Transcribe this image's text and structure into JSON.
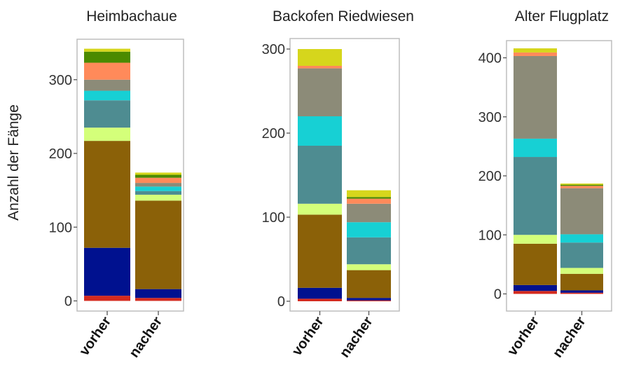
{
  "ylabel": "Anzahl der Fänge",
  "category_colors": [
    "#d42a1e",
    "#00118f",
    "#8b6108",
    "#d4ff7a",
    "#4e8c91",
    "#17d0d4",
    "#8c8b78",
    "#ff8a5a",
    "#4b8a00",
    "#d6d61c"
  ],
  "chart_data": [
    {
      "type": "bar",
      "stacked": true,
      "title": "Heimbachaue",
      "categories": [
        "vorher",
        "nacher"
      ],
      "ylim": [
        0,
        350
      ],
      "yticks": [
        0,
        100,
        200,
        300
      ],
      "grid": false,
      "series": [
        {
          "color": "#d42a1e",
          "values": [
            7,
            4
          ]
        },
        {
          "color": "#00118f",
          "values": [
            65,
            12
          ]
        },
        {
          "color": "#8b6108",
          "values": [
            145,
            120
          ]
        },
        {
          "color": "#d4ff7a",
          "values": [
            18,
            8
          ]
        },
        {
          "color": "#4e8c91",
          "values": [
            37,
            5
          ]
        },
        {
          "color": "#17d0d4",
          "values": [
            13,
            6
          ]
        },
        {
          "color": "#8c8b78",
          "values": [
            15,
            5
          ]
        },
        {
          "color": "#ff8a5a",
          "values": [
            23,
            7
          ]
        },
        {
          "color": "#4b8a00",
          "values": [
            15,
            4
          ]
        },
        {
          "color": "#d6d61c",
          "values": [
            4,
            3
          ]
        }
      ]
    },
    {
      "type": "bar",
      "stacked": true,
      "title": "Backofen Riedwiesen",
      "categories": [
        "vorher",
        "nacher"
      ],
      "ylim": [
        0,
        310
      ],
      "yticks": [
        0,
        100,
        200,
        300
      ],
      "grid": false,
      "series": [
        {
          "color": "#d42a1e",
          "values": [
            3,
            1
          ]
        },
        {
          "color": "#00118f",
          "values": [
            13,
            3
          ]
        },
        {
          "color": "#8b6108",
          "values": [
            87,
            33
          ]
        },
        {
          "color": "#d4ff7a",
          "values": [
            13,
            7
          ]
        },
        {
          "color": "#4e8c91",
          "values": [
            69,
            32
          ]
        },
        {
          "color": "#17d0d4",
          "values": [
            35,
            18
          ]
        },
        {
          "color": "#8c8b78",
          "values": [
            57,
            22
          ]
        },
        {
          "color": "#ff8a5a",
          "values": [
            3,
            6
          ]
        },
        {
          "color": "#4b8a00",
          "values": [
            0,
            2
          ]
        },
        {
          "color": "#d6d61c",
          "values": [
            20,
            8
          ]
        }
      ]
    },
    {
      "type": "bar",
      "stacked": true,
      "title": "Alter Flugplatz",
      "categories": [
        "vorher",
        "nacher"
      ],
      "ylim": [
        0,
        420
      ],
      "yticks": [
        0,
        100,
        200,
        300,
        400
      ],
      "grid": false,
      "series": [
        {
          "color": "#d42a1e",
          "values": [
            5,
            2
          ]
        },
        {
          "color": "#00118f",
          "values": [
            10,
            4
          ]
        },
        {
          "color": "#8b6108",
          "values": [
            70,
            28
          ]
        },
        {
          "color": "#d4ff7a",
          "values": [
            15,
            10
          ]
        },
        {
          "color": "#4e8c91",
          "values": [
            132,
            43
          ]
        },
        {
          "color": "#17d0d4",
          "values": [
            31,
            14
          ]
        },
        {
          "color": "#8c8b78",
          "values": [
            140,
            78
          ]
        },
        {
          "color": "#ff8a5a",
          "values": [
            6,
            4
          ]
        },
        {
          "color": "#4b8a00",
          "values": [
            0,
            2
          ]
        },
        {
          "color": "#d6d61c",
          "values": [
            7,
            2
          ]
        }
      ]
    }
  ]
}
